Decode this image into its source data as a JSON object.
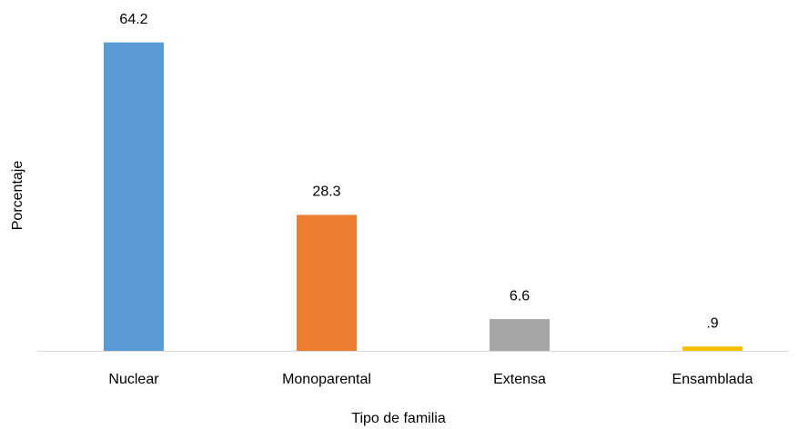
{
  "chart_data": {
    "type": "bar",
    "categories": [
      "Nuclear",
      "Monoparental",
      "Extensa",
      "Ensamblada"
    ],
    "values": [
      64.2,
      28.3,
      6.6,
      0.9
    ],
    "value_labels": [
      "64.2",
      "28.3",
      "6.6",
      ".9"
    ],
    "colors": [
      "#5b9bd5",
      "#ed7d31",
      "#a5a5a5",
      "#ffc000"
    ],
    "xlabel": "Tipo de familia",
    "ylabel": "Porcentaje",
    "ylim": [
      0,
      70
    ]
  }
}
